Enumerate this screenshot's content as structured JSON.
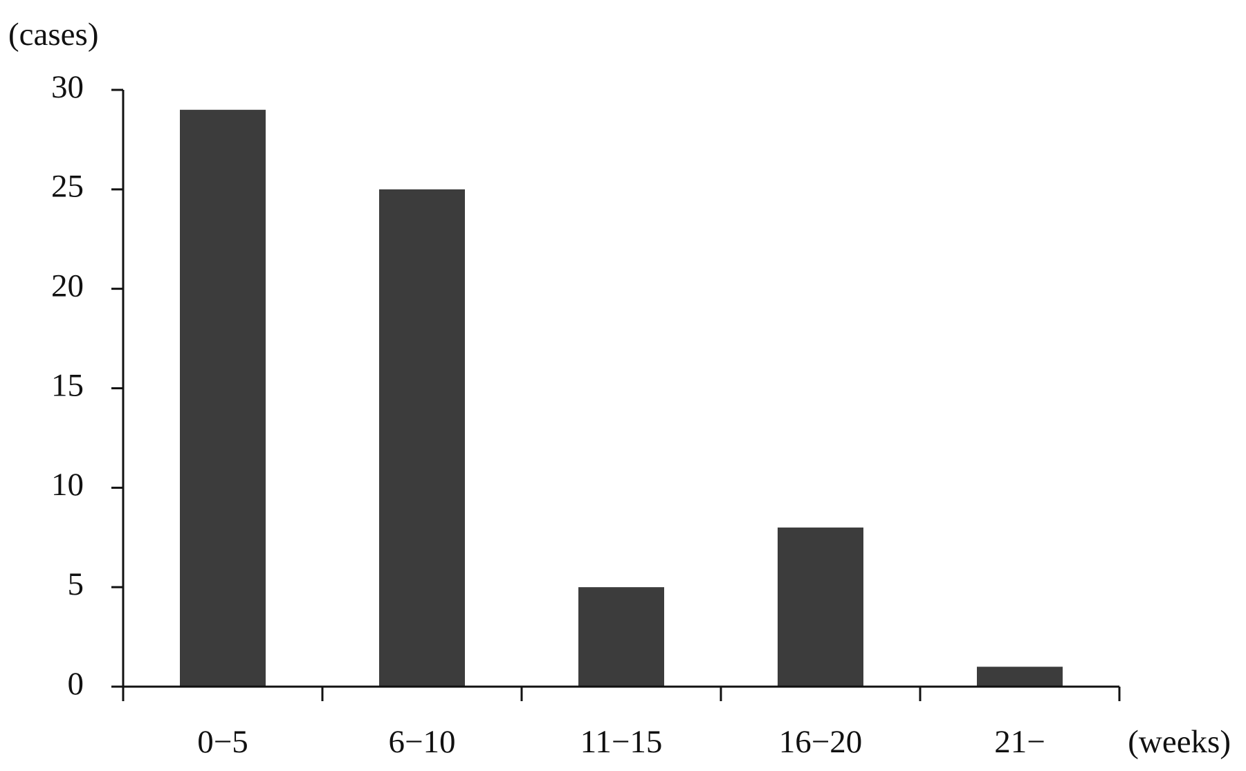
{
  "chart_data": {
    "type": "bar",
    "y_label": "(cases)",
    "x_label": "(weeks)",
    "categories": [
      "0−5",
      "6−10",
      "11−15",
      "16−20",
      "21−"
    ],
    "values": [
      29,
      25,
      5,
      8,
      1
    ],
    "color": "#3c3c3c",
    "ylim": [
      0,
      30
    ],
    "yticks": [
      0,
      5,
      10,
      15,
      20,
      25,
      30
    ]
  }
}
